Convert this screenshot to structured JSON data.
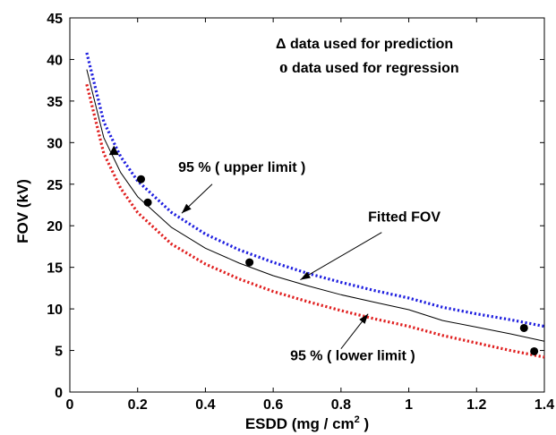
{
  "chart_data": {
    "type": "line",
    "title": "",
    "xlabel": "ESDD (mg / cm",
    "xlabel_sup": "2",
    "xlabel_end": " )",
    "ylabel": "FOV (kV)",
    "xlim": [
      0,
      1.4
    ],
    "ylim": [
      0,
      45
    ],
    "x_ticks": [
      0,
      0.2,
      0.4,
      0.6,
      0.8,
      1,
      1.2,
      1.4
    ],
    "x_tick_labels": [
      "0",
      "0.2",
      "0.4",
      "0.6",
      "0.8",
      "1",
      "1.2",
      "1.4"
    ],
    "y_ticks": [
      0,
      5,
      10,
      15,
      20,
      25,
      30,
      35,
      40,
      45
    ],
    "y_tick_labels": [
      "0",
      "5",
      "10",
      "15",
      "20",
      "25",
      "30",
      "35",
      "40",
      "45"
    ],
    "grid": false,
    "series": [
      {
        "style": "solid",
        "color": "#000000",
        "x": [
          0.05,
          0.1,
          0.15,
          0.2,
          0.3,
          0.4,
          0.5,
          0.6,
          0.7,
          0.8,
          0.9,
          1.0,
          1.1,
          1.2,
          1.3,
          1.4
        ],
        "y": [
          38.8,
          30.6,
          26.4,
          23.5,
          19.8,
          17.3,
          15.5,
          14.0,
          12.8,
          11.7,
          10.8,
          9.9,
          8.6,
          7.8,
          7.0,
          6.1
        ]
      },
      {
        "style": "dotted",
        "color": "#1f1fdf",
        "x": [
          0.05,
          0.1,
          0.15,
          0.2,
          0.3,
          0.4,
          0.5,
          0.6,
          0.7,
          0.8,
          0.9,
          1.0,
          1.1,
          1.2,
          1.3,
          1.4
        ],
        "y": [
          40.8,
          32.5,
          28.3,
          25.4,
          21.6,
          19.0,
          17.1,
          15.6,
          14.3,
          13.2,
          12.2,
          11.3,
          10.2,
          9.4,
          8.7,
          7.9
        ]
      },
      {
        "style": "dotted",
        "color": "#e02020",
        "x": [
          0.05,
          0.1,
          0.15,
          0.2,
          0.3,
          0.4,
          0.5,
          0.6,
          0.7,
          0.8,
          0.9,
          1.0,
          1.1,
          1.2,
          1.3,
          1.4
        ],
        "y": [
          37.0,
          28.7,
          24.5,
          21.6,
          17.8,
          15.4,
          13.6,
          12.1,
          10.9,
          9.8,
          8.8,
          7.9,
          6.8,
          5.9,
          5.0,
          4.2
        ]
      }
    ],
    "regression_points": {
      "marker": "circle",
      "x": [
        0.21,
        0.23,
        0.53,
        1.34,
        1.37
      ],
      "y": [
        25.6,
        22.8,
        15.6,
        7.7,
        4.9
      ]
    },
    "prediction_points": {
      "marker": "triangle",
      "x": [
        0.13
      ],
      "y": [
        29.0
      ]
    },
    "legend_text": {
      "prediction_symbol": "Δ",
      "prediction_text": " data used for prediction",
      "regression_symbol": "o",
      "regression_text": " data used for regression"
    },
    "annotations": [
      {
        "text": "95 % ( upper limit )",
        "text_x": 0.32,
        "text_y": 26.5,
        "arrow_from": [
          0.42,
          25.0
        ],
        "arrow_to": [
          0.33,
          21.5
        ]
      },
      {
        "text": "Fitted FOV",
        "text_x": 0.88,
        "text_y": 20.5,
        "arrow_from": [
          0.92,
          19.2
        ],
        "arrow_to": [
          0.68,
          13.5
        ]
      },
      {
        "text": "95 % ( lower limit )",
        "text_x": 0.65,
        "text_y": 3.8,
        "arrow_from": [
          0.8,
          5.2
        ],
        "arrow_to": [
          0.88,
          9.4
        ]
      }
    ]
  }
}
